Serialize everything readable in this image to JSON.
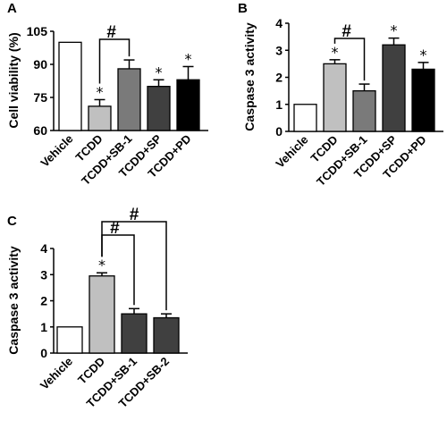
{
  "chart_data": [
    {
      "panel": "A",
      "type": "bar",
      "ylabel": "Cell viability (%)",
      "ylim": [
        60,
        105
      ],
      "yticks": [
        60,
        75,
        90,
        105
      ],
      "categories": [
        "Vehicle",
        "TCDD",
        "TCDD+SB-1",
        "TCDD+SP",
        "TCDD+PD"
      ],
      "values": [
        100,
        71,
        88,
        80,
        83
      ],
      "errors": [
        0,
        3,
        4,
        3,
        6
      ],
      "colors": [
        "#ffffff",
        "#c0c0c0",
        "#7a7a7a",
        "#404040",
        "#000000"
      ],
      "stars": [
        "",
        "*",
        "",
        "*",
        "*"
      ],
      "brackets": [
        {
          "label": "#",
          "from": 1,
          "to": 2
        }
      ]
    },
    {
      "panel": "B",
      "type": "bar",
      "ylabel": "Caspase 3 activity",
      "ylim": [
        0,
        4
      ],
      "yticks": [
        0,
        1,
        2,
        3,
        4
      ],
      "categories": [
        "Vehicle",
        "TCDD",
        "TCDD+SB-1",
        "TCDD+SP",
        "TCDD+PD"
      ],
      "values": [
        1.0,
        2.5,
        1.5,
        3.2,
        2.3
      ],
      "errors": [
        0,
        0.15,
        0.25,
        0.25,
        0.25
      ],
      "colors": [
        "#ffffff",
        "#c0c0c0",
        "#7a7a7a",
        "#404040",
        "#000000"
      ],
      "stars": [
        "",
        "*",
        "",
        "*",
        "*"
      ],
      "brackets": [
        {
          "label": "#",
          "from": 1,
          "to": 2
        }
      ]
    },
    {
      "panel": "C",
      "type": "bar",
      "ylabel": "Caspase 3 activity",
      "ylim": [
        0,
        4
      ],
      "yticks": [
        0,
        1,
        2,
        3,
        4
      ],
      "categories": [
        "Vehicle",
        "TCDD",
        "TCDD+SB-1",
        "TCDD+SB-2"
      ],
      "values": [
        1.0,
        2.95,
        1.5,
        1.35
      ],
      "errors": [
        0,
        0.12,
        0.2,
        0.15
      ],
      "colors": [
        "#ffffff",
        "#c0c0c0",
        "#404040",
        "#404040"
      ],
      "stars": [
        "",
        "*",
        "",
        ""
      ],
      "brackets": [
        {
          "label": "#",
          "from": 1,
          "to": 2
        },
        {
          "label": "#",
          "from": 1,
          "to": 3
        }
      ]
    }
  ]
}
